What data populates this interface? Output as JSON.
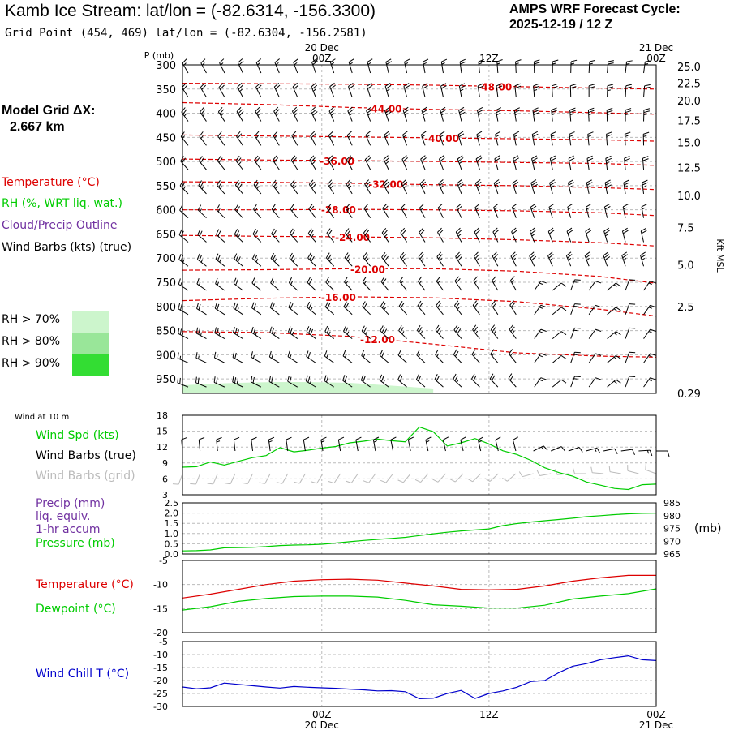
{
  "header": {
    "title": "Kamb Ice Stream:  lat/lon = (-82.6314, -156.3300)",
    "grid_point": "Grid Point (454, 469) lat/lon = (-82.6304, -156.2581)",
    "cycle_line1": "AMPS WRF Forecast Cycle:",
    "cycle_line2": "2025-12-19 / 12  Z"
  },
  "left_panel": {
    "model_grid_line1": "Model Grid ΔX:",
    "model_grid_line2": "2.667 km",
    "legend": {
      "temperature": "Temperature (°C)",
      "rh": "RH (%, WRT liq. wat.)",
      "cloud": "Cloud/Precip Outline",
      "wind": "Wind Barbs (kts) (true)"
    },
    "rh_key": [
      {
        "label": "RH > 70%",
        "color": "#ccf5cc"
      },
      {
        "label": "RH > 80%",
        "color": "#99e699"
      },
      {
        "label": "RH > 90%",
        "color": "#33dd33"
      }
    ]
  },
  "colors": {
    "temperature": "#dd0000",
    "green": "#00cc00",
    "purple": "#7030a0",
    "blue": "#0000cc",
    "grid": "#bbbbbb",
    "barb_gray": "#bbbbbb"
  },
  "time_axis": {
    "top_labels": [
      {
        "date": "20 Dec",
        "hour": "00Z",
        "hours": 12
      },
      {
        "date": "",
        "hour": "12Z",
        "hours": 24
      },
      {
        "date": "21 Dec",
        "hour": "00Z",
        "hours": 36
      }
    ],
    "bottom_labels": [
      {
        "hour": "00Z",
        "date": "20 Dec",
        "hours": 12
      },
      {
        "hour": "12Z",
        "date": "",
        "hours": 24
      },
      {
        "hour": "00Z",
        "date": "21 Dec",
        "hours": 36
      }
    ],
    "start_hours": 2,
    "end_hours": 36
  },
  "chart_data": [
    {
      "type": "line",
      "name": "cross-section",
      "title": "Pressure-time cross section",
      "ylabel": "P (mb)",
      "y2label": "Kft MSL",
      "pressure_levels": [
        300,
        350,
        400,
        450,
        500,
        550,
        600,
        650,
        700,
        750,
        800,
        850,
        900,
        950
      ],
      "ylim": [
        980,
        300
      ],
      "height_ticks": [
        {
          "label": "25.0",
          "p": 303
        },
        {
          "label": "22.5",
          "p": 338
        },
        {
          "label": "20.0",
          "p": 374
        },
        {
          "label": "17.5",
          "p": 415
        },
        {
          "label": "15.0",
          "p": 460
        },
        {
          "label": "12.5",
          "p": 512
        },
        {
          "label": "10.0",
          "p": 570
        },
        {
          "label": "7.5",
          "p": 637
        },
        {
          "label": "5.0",
          "p": 714
        },
        {
          "label": "2.5",
          "p": 800
        },
        {
          "label": "0.29",
          "p": 980
        }
      ],
      "temperature_contours": [
        {
          "label": "-48.00",
          "label_hours": 24.4,
          "p": [
            338,
            339,
            340,
            342,
            345,
            348,
            350
          ]
        },
        {
          "label": "-44.00",
          "label_hours": 16.5,
          "p": [
            378,
            382,
            388,
            392,
            395,
            399,
            402
          ]
        },
        {
          "label": "-40.00",
          "label_hours": 20.6,
          "p": [
            445,
            447,
            449,
            451,
            453,
            455,
            458
          ]
        },
        {
          "label": "-36.00",
          "label_hours": 13.1,
          "p": [
            495,
            497,
            498,
            500,
            502,
            504,
            508
          ]
        },
        {
          "label": "-32.00",
          "label_hours": 16.6,
          "p": [
            542,
            543,
            545,
            548,
            550,
            554,
            558
          ]
        },
        {
          "label": "-28.00",
          "label_hours": 13.2,
          "p": [
            600,
            600,
            599,
            600,
            602,
            606,
            612
          ]
        },
        {
          "label": "-24.00",
          "label_hours": 14.2,
          "p": [
            653,
            655,
            656,
            658,
            662,
            668,
            675
          ]
        },
        {
          "label": "-20.00",
          "label_hours": 15.3,
          "p": [
            725,
            724,
            722,
            722,
            727,
            738,
            752
          ]
        },
        {
          "label": "-16.00",
          "label_hours": 13.2,
          "p": [
            788,
            783,
            780,
            782,
            790,
            806,
            820
          ]
        },
        {
          "label": "-12.00",
          "label_hours": 16.0,
          "p": [
            852,
            854,
            862,
            878,
            896,
            903,
            905
          ]
        }
      ],
      "contour_hours": [
        2,
        8,
        14,
        20,
        26,
        32,
        36
      ],
      "rh70_region": "near surface, 2Z-20Z"
    },
    {
      "type": "line",
      "name": "wind-10m",
      "title": "Wind at 10 m",
      "ylim": [
        3,
        18
      ],
      "yticks": [
        3,
        6,
        9,
        12,
        15,
        18
      ],
      "series": [
        {
          "name": "Wind Spd (kts)",
          "hours": [
            2,
            3,
            4,
            5,
            6,
            7,
            8,
            9,
            10,
            11,
            12,
            13,
            14,
            15,
            16,
            17,
            18,
            19,
            20,
            21,
            22,
            23,
            24,
            25,
            26,
            27,
            28,
            29,
            30,
            31,
            32,
            33,
            34,
            35,
            36
          ],
          "values": [
            8.2,
            8.3,
            9.2,
            8.6,
            9.3,
            10.0,
            10.4,
            11.9,
            11.1,
            11.4,
            11.8,
            12.1,
            12.8,
            13.1,
            13.5,
            13.2,
            13.0,
            15.8,
            14.9,
            12.2,
            12.8,
            13.6,
            12.6,
            11.3,
            10.6,
            9.5,
            8.1,
            7.2,
            6.5,
            5.4,
            4.8,
            4.2,
            4.0,
            4.9,
            5.0
          ]
        }
      ]
    },
    {
      "type": "line",
      "name": "precip-pressure",
      "ylim": [
        0.0,
        2.5
      ],
      "yticks": [
        "0.0",
        "0.5",
        "1.0",
        "1.5",
        "2.0",
        "2.5"
      ],
      "y2lim": [
        965,
        985
      ],
      "y2ticks": [
        "965",
        "970",
        "975",
        "980",
        "985"
      ],
      "series": [
        {
          "name": "Precip (mm) liq. equiv. 1-hr accum",
          "values": [
            0,
            0,
            0,
            0,
            0,
            0,
            0,
            0,
            0,
            0,
            0,
            0,
            0,
            0,
            0,
            0,
            0,
            0,
            0,
            0,
            0,
            0,
            0,
            0,
            0,
            0,
            0,
            0,
            0,
            0,
            0,
            0,
            0,
            0,
            0
          ]
        },
        {
          "name": "Pressure (mb)",
          "hours": [
            2,
            3,
            4,
            5,
            6,
            7,
            8,
            9,
            10,
            11,
            12,
            13,
            14,
            15,
            16,
            17,
            18,
            19,
            20,
            21,
            22,
            23,
            24,
            25,
            26,
            27,
            28,
            29,
            30,
            31,
            32,
            33,
            34,
            35,
            36
          ],
          "values": [
            966.2,
            966.3,
            966.6,
            967.4,
            967.5,
            967.6,
            967.9,
            968.3,
            968.5,
            968.6,
            968.8,
            969.3,
            969.8,
            970.3,
            970.7,
            971.1,
            971.5,
            972.2,
            972.9,
            973.5,
            974.0,
            974.4,
            974.8,
            976.1,
            976.9,
            977.5,
            978.0,
            978.5,
            979.0,
            979.6,
            980.0,
            980.4,
            980.7,
            980.9,
            981.0
          ]
        }
      ]
    },
    {
      "type": "line",
      "name": "temperature-dewpoint",
      "ylim": [
        -20,
        -5
      ],
      "yticks": [
        "-5",
        "-10",
        "-15",
        "-20"
      ],
      "series": [
        {
          "name": "Temperature (°C)",
          "hours": [
            2,
            4,
            6,
            8,
            10,
            12,
            14,
            16,
            18,
            20,
            22,
            24,
            26,
            28,
            30,
            32,
            34,
            36
          ],
          "values": [
            -12.8,
            -12.0,
            -11.0,
            -10.0,
            -9.3,
            -9.0,
            -8.9,
            -9.1,
            -9.7,
            -10.3,
            -11.0,
            -11.1,
            -11.0,
            -10.3,
            -9.3,
            -8.6,
            -8.1,
            -8.1
          ]
        },
        {
          "name": "Dewpoint (°C)",
          "hours": [
            2,
            4,
            6,
            8,
            10,
            12,
            14,
            16,
            18,
            20,
            22,
            24,
            26,
            28,
            30,
            32,
            34,
            36
          ],
          "values": [
            -15.3,
            -14.6,
            -13.5,
            -12.9,
            -12.5,
            -12.4,
            -12.4,
            -12.6,
            -13.3,
            -14.2,
            -14.5,
            -14.9,
            -14.9,
            -14.3,
            -13.0,
            -12.4,
            -11.9,
            -10.9
          ]
        }
      ]
    },
    {
      "type": "line",
      "name": "wind-chill",
      "ylim": [
        -30,
        -5
      ],
      "yticks": [
        "-5",
        "-10",
        "-15",
        "-20",
        "-25",
        "-30"
      ],
      "series": [
        {
          "name": "Wind Chill T (°C)",
          "hours": [
            2,
            3,
            4,
            5,
            6,
            7,
            8,
            9,
            10,
            11,
            12,
            13,
            14,
            15,
            16,
            17,
            18,
            19,
            20,
            21,
            22,
            23,
            24,
            25,
            26,
            27,
            28,
            29,
            30,
            31,
            32,
            33,
            34,
            35,
            36
          ],
          "values": [
            -22.5,
            -23.2,
            -22.8,
            -21.0,
            -21.5,
            -22.0,
            -22.5,
            -22.9,
            -22.3,
            -22.6,
            -22.8,
            -23.0,
            -23.3,
            -23.6,
            -24.0,
            -23.9,
            -24.3,
            -27.0,
            -26.8,
            -25.0,
            -23.8,
            -26.9,
            -25.0,
            -24.0,
            -22.6,
            -20.4,
            -20.0,
            -17.0,
            -14.5,
            -13.5,
            -12.0,
            -11.2,
            -10.5,
            -12.0,
            -12.3
          ]
        }
      ]
    }
  ],
  "wind_panel_labels": {
    "wind_at_10m": "Wind at 10 m",
    "speed": "Wind Spd (kts)",
    "barbs_true": "Wind Barbs (true)",
    "barbs_grid": "Wind Barbs (grid)"
  },
  "precip_panel_labels": {
    "precip": "Precip (mm)",
    "liq": "liq. equiv.",
    "accum": "1-hr accum",
    "pressure": "Pressure (mb)",
    "mb": "(mb)"
  },
  "temp_panel_labels": {
    "temperature": "Temperature (°C)",
    "dewpoint": "Dewpoint (°C)"
  },
  "chill_panel_labels": {
    "chill": "Wind Chill T (°C)"
  }
}
